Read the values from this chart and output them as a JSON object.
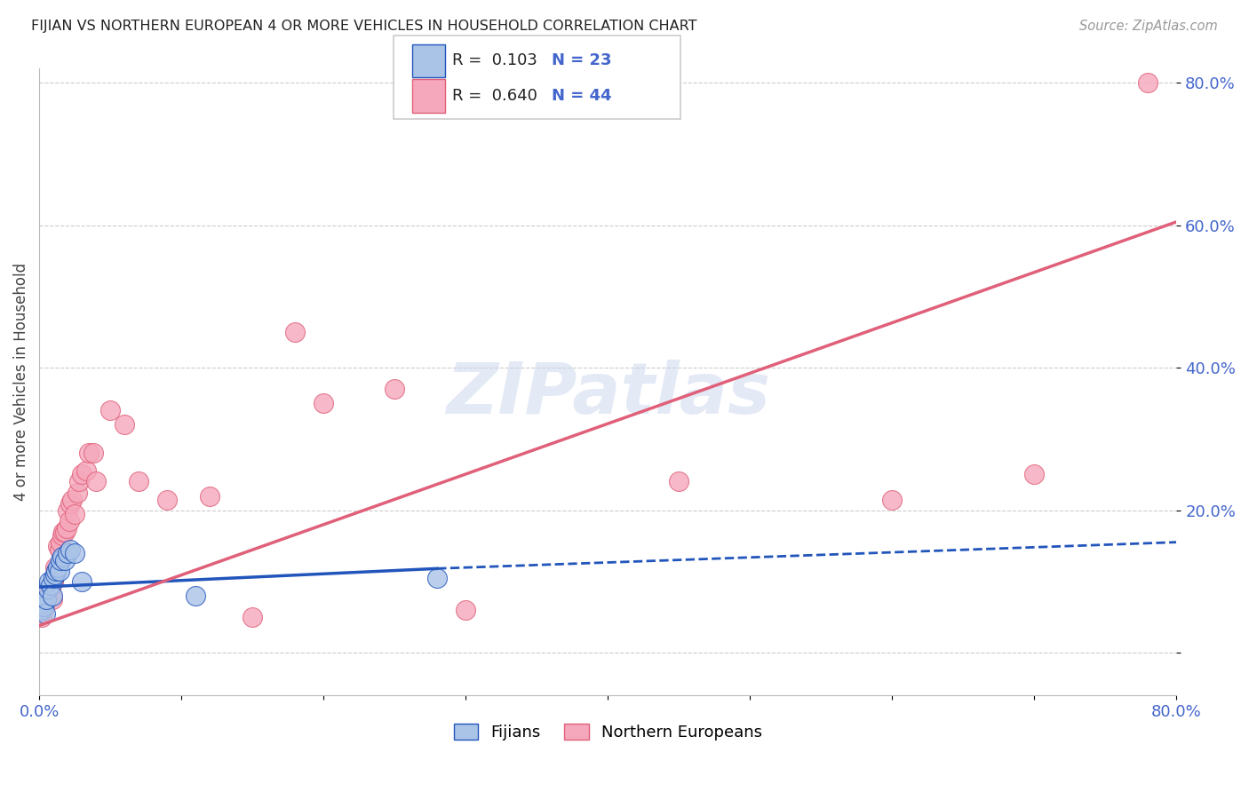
{
  "title": "FIJIAN VS NORTHERN EUROPEAN 4 OR MORE VEHICLES IN HOUSEHOLD CORRELATION CHART",
  "source": "Source: ZipAtlas.com",
  "ylabel": "4 or more Vehicles in Household",
  "xmin": 0.0,
  "xmax": 0.8,
  "ymin": -0.06,
  "ymax": 0.82,
  "fijian_color": "#aac4e8",
  "northern_color": "#f5a8bc",
  "fijian_line_color": "#2255bb",
  "northern_line_color": "#e0607a",
  "watermark": "ZIPatlas",
  "fijian_points": [
    [
      0.001,
      0.06
    ],
    [
      0.002,
      0.07
    ],
    [
      0.003,
      0.065
    ],
    [
      0.004,
      0.055
    ],
    [
      0.005,
      0.075
    ],
    [
      0.006,
      0.09
    ],
    [
      0.007,
      0.1
    ],
    [
      0.008,
      0.095
    ],
    [
      0.009,
      0.08
    ],
    [
      0.01,
      0.105
    ],
    [
      0.011,
      0.11
    ],
    [
      0.012,
      0.115
    ],
    [
      0.013,
      0.12
    ],
    [
      0.014,
      0.115
    ],
    [
      0.015,
      0.13
    ],
    [
      0.016,
      0.135
    ],
    [
      0.018,
      0.13
    ],
    [
      0.02,
      0.14
    ],
    [
      0.022,
      0.145
    ],
    [
      0.025,
      0.14
    ],
    [
      0.03,
      0.1
    ],
    [
      0.11,
      0.08
    ],
    [
      0.28,
      0.105
    ]
  ],
  "northern_points": [
    [
      0.002,
      0.05
    ],
    [
      0.003,
      0.06
    ],
    [
      0.004,
      0.07
    ],
    [
      0.005,
      0.075
    ],
    [
      0.006,
      0.08
    ],
    [
      0.007,
      0.085
    ],
    [
      0.008,
      0.09
    ],
    [
      0.009,
      0.075
    ],
    [
      0.01,
      0.1
    ],
    [
      0.011,
      0.12
    ],
    [
      0.012,
      0.115
    ],
    [
      0.013,
      0.15
    ],
    [
      0.014,
      0.145
    ],
    [
      0.015,
      0.155
    ],
    [
      0.016,
      0.165
    ],
    [
      0.017,
      0.17
    ],
    [
      0.018,
      0.17
    ],
    [
      0.019,
      0.175
    ],
    [
      0.02,
      0.2
    ],
    [
      0.021,
      0.185
    ],
    [
      0.022,
      0.21
    ],
    [
      0.023,
      0.215
    ],
    [
      0.025,
      0.195
    ],
    [
      0.027,
      0.225
    ],
    [
      0.028,
      0.24
    ],
    [
      0.03,
      0.25
    ],
    [
      0.033,
      0.255
    ],
    [
      0.035,
      0.28
    ],
    [
      0.038,
      0.28
    ],
    [
      0.04,
      0.24
    ],
    [
      0.05,
      0.34
    ],
    [
      0.06,
      0.32
    ],
    [
      0.07,
      0.24
    ],
    [
      0.09,
      0.215
    ],
    [
      0.12,
      0.22
    ],
    [
      0.15,
      0.05
    ],
    [
      0.18,
      0.45
    ],
    [
      0.2,
      0.35
    ],
    [
      0.25,
      0.37
    ],
    [
      0.3,
      0.06
    ],
    [
      0.45,
      0.24
    ],
    [
      0.6,
      0.215
    ],
    [
      0.7,
      0.25
    ],
    [
      0.78,
      0.8
    ]
  ],
  "fijian_line_x1": 0.0,
  "fijian_line_y1": 0.092,
  "fijian_line_x2_solid": 0.28,
  "fijian_line_y2_solid": 0.118,
  "fijian_line_x2_dashed": 0.8,
  "fijian_line_y2_dashed": 0.155,
  "northern_line_x1": 0.0,
  "northern_line_y1": 0.038,
  "northern_line_x2": 0.8,
  "northern_line_y2": 0.605
}
